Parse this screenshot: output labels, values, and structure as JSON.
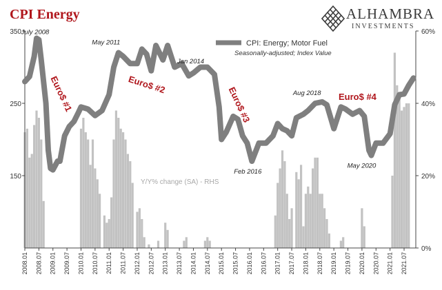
{
  "header": {
    "title": "CPI Energy"
  },
  "logo": {
    "name": "ALHAMBRA",
    "subtitle": "INVESTMENTS",
    "mark": "diamond-lattice-icon"
  },
  "colors": {
    "title": "#b0161c",
    "line": "#7f7f7f",
    "bars": "#c2c2c2",
    "euro_label": "#b0161c",
    "text": "#333333"
  },
  "chart_data": {
    "type": "bar+line",
    "title": "CPI Energy",
    "legend": {
      "label": "CPI: Energy; Motor Fuel",
      "sublabel": "Seasonally-adjusted; Index Value",
      "placement": "top-right"
    },
    "left_axis": {
      "ylim": [
        50,
        350
      ],
      "ticks": [
        150,
        250,
        350
      ]
    },
    "right_axis": {
      "ylim": [
        0,
        60
      ],
      "ticks": [
        "0%",
        "20%",
        "40%",
        "60%"
      ],
      "label": "Y/Y% change (SA) - RHS"
    },
    "x_ticks": [
      "2008.01",
      "2008.07",
      "2009.01",
      "2009.07",
      "2010.01",
      "2010.07",
      "2011.01",
      "2011.07",
      "2012.01",
      "2012.07",
      "2013.01",
      "2013.07",
      "2014.01",
      "2014.07",
      "2015.01",
      "2015.07",
      "2016.01",
      "2016.07",
      "2017.01",
      "2017.07",
      "2018.01",
      "2018.07",
      "2019.01",
      "2019.07",
      "2020.01",
      "2020.07",
      "2021.01",
      "2021.07"
    ],
    "annotations": [
      "July 2008",
      "May 2011",
      "Jan 2014",
      "Feb 2016",
      "Aug 2018",
      "May 2020"
    ],
    "euro_labels": [
      "Euro$ #1",
      "Euro$ #2",
      "Euro$ #3",
      "Euro$ #4"
    ],
    "cpi_series": {
      "name": "CPI: Energy; Motor Fuel",
      "points": [
        [
          "2008.01",
          280
        ],
        [
          "2008.03",
          287
        ],
        [
          "2008.05",
          315
        ],
        [
          "2008.06",
          340
        ],
        [
          "2008.07",
          338
        ],
        [
          "2008.08",
          310
        ],
        [
          "2008.10",
          250
        ],
        [
          "2008.11",
          185
        ],
        [
          "2008.12",
          160
        ],
        [
          "2009.01",
          158
        ],
        [
          "2009.03",
          170
        ],
        [
          "2009.04",
          170
        ],
        [
          "2009.06",
          205
        ],
        [
          "2009.08",
          218
        ],
        [
          "2009.10",
          225
        ],
        [
          "2009.12",
          238
        ],
        [
          "2010.01",
          245
        ],
        [
          "2010.04",
          242
        ],
        [
          "2010.07",
          233
        ],
        [
          "2010.10",
          240
        ],
        [
          "2011.01",
          262
        ],
        [
          "2011.03",
          300
        ],
        [
          "2011.05",
          320
        ],
        [
          "2011.07",
          315
        ],
        [
          "2011.10",
          305
        ],
        [
          "2012.01",
          305
        ],
        [
          "2012.03",
          325
        ],
        [
          "2012.05",
          318
        ],
        [
          "2012.07",
          295
        ],
        [
          "2012.09",
          330
        ],
        [
          "2012.12",
          310
        ],
        [
          "2013.02",
          330
        ],
        [
          "2013.05",
          300
        ],
        [
          "2013.08",
          305
        ],
        [
          "2013.11",
          288
        ],
        [
          "2014.01",
          292
        ],
        [
          "2014.04",
          300
        ],
        [
          "2014.07",
          300
        ],
        [
          "2014.10",
          290
        ],
        [
          "2014.12",
          245
        ],
        [
          "2015.01",
          200
        ],
        [
          "2015.03",
          210
        ],
        [
          "2015.06",
          232
        ],
        [
          "2015.08",
          228
        ],
        [
          "2015.10",
          205
        ],
        [
          "2015.12",
          195
        ],
        [
          "2016.02",
          170
        ],
        [
          "2016.05",
          195
        ],
        [
          "2016.08",
          195
        ],
        [
          "2016.11",
          205
        ],
        [
          "2017.01",
          222
        ],
        [
          "2017.03",
          215
        ],
        [
          "2017.05",
          212
        ],
        [
          "2017.07",
          205
        ],
        [
          "2017.09",
          230
        ],
        [
          "2017.12",
          235
        ],
        [
          "2018.02",
          240
        ],
        [
          "2018.05",
          250
        ],
        [
          "2018.08",
          252
        ],
        [
          "2018.10",
          248
        ],
        [
          "2019.01",
          215
        ],
        [
          "2019.04",
          245
        ],
        [
          "2019.06",
          242
        ],
        [
          "2019.09",
          235
        ],
        [
          "2019.12",
          240
        ],
        [
          "2020.02",
          232
        ],
        [
          "2020.04",
          185
        ],
        [
          "2020.05",
          178
        ],
        [
          "2020.07",
          195
        ],
        [
          "2020.10",
          195
        ],
        [
          "2021.01",
          208
        ],
        [
          "2021.03",
          248
        ],
        [
          "2021.05",
          262
        ],
        [
          "2021.07",
          263
        ],
        [
          "2021.09",
          275
        ],
        [
          "2021.11",
          285
        ]
      ]
    },
    "yoy_series": {
      "name": "Y/Y% change (SA) - RHS",
      "points": [
        [
          "2008.01",
          32
        ],
        [
          "2008.02",
          33
        ],
        [
          "2008.03",
          25
        ],
        [
          "2008.04",
          26
        ],
        [
          "2008.05",
          34
        ],
        [
          "2008.06",
          38
        ],
        [
          "2008.07",
          36
        ],
        [
          "2008.08",
          30
        ],
        [
          "2008.09",
          13
        ],
        [
          "2010.01",
          33
        ],
        [
          "2010.02",
          36
        ],
        [
          "2010.03",
          32
        ],
        [
          "2010.04",
          30
        ],
        [
          "2010.05",
          23
        ],
        [
          "2010.06",
          30
        ],
        [
          "2010.07",
          22
        ],
        [
          "2010.08",
          19
        ],
        [
          "2010.09",
          15
        ],
        [
          "2010.11",
          9
        ],
        [
          "2010.12",
          7
        ],
        [
          "2011.01",
          8
        ],
        [
          "2011.02",
          14
        ],
        [
          "2011.03",
          30
        ],
        [
          "2011.04",
          38
        ],
        [
          "2011.05",
          36
        ],
        [
          "2011.06",
          33
        ],
        [
          "2011.07",
          32
        ],
        [
          "2011.08",
          30
        ],
        [
          "2011.09",
          26
        ],
        [
          "2011.10",
          24
        ],
        [
          "2011.11",
          18
        ],
        [
          "2012.01",
          10
        ],
        [
          "2012.02",
          11
        ],
        [
          "2012.03",
          8
        ],
        [
          "2012.04",
          3
        ],
        [
          "2012.06",
          1
        ],
        [
          "2012.10",
          2
        ],
        [
          "2013.01",
          7
        ],
        [
          "2013.02",
          5
        ],
        [
          "2013.09",
          2
        ],
        [
          "2013.10",
          3
        ],
        [
          "2014.06",
          2
        ],
        [
          "2014.07",
          3
        ],
        [
          "2014.08",
          2
        ],
        [
          "2016.12",
          9
        ],
        [
          "2017.01",
          18
        ],
        [
          "2017.02",
          22
        ],
        [
          "2017.03",
          27
        ],
        [
          "2017.04",
          24
        ],
        [
          "2017.05",
          15
        ],
        [
          "2017.06",
          8
        ],
        [
          "2017.07",
          11
        ],
        [
          "2017.09",
          21
        ],
        [
          "2017.10",
          19
        ],
        [
          "2017.11",
          23
        ],
        [
          "2017.12",
          6
        ],
        [
          "2018.01",
          15
        ],
        [
          "2018.02",
          17
        ],
        [
          "2018.03",
          15
        ],
        [
          "2018.04",
          22
        ],
        [
          "2018.05",
          25
        ],
        [
          "2018.06",
          25
        ],
        [
          "2018.07",
          15
        ],
        [
          "2018.08",
          15
        ],
        [
          "2018.09",
          11
        ],
        [
          "2018.10",
          8
        ],
        [
          "2018.11",
          4
        ],
        [
          "2019.04",
          2
        ],
        [
          "2019.05",
          3
        ],
        [
          "2020.01",
          11
        ],
        [
          "2020.02",
          6
        ],
        [
          "2021.02",
          20
        ],
        [
          "2021.03",
          54
        ],
        [
          "2021.04",
          45
        ],
        [
          "2021.05",
          42
        ],
        [
          "2021.06",
          38
        ],
        [
          "2021.07",
          39
        ],
        [
          "2021.08",
          40
        ],
        [
          "2021.09",
          40
        ]
      ]
    }
  }
}
